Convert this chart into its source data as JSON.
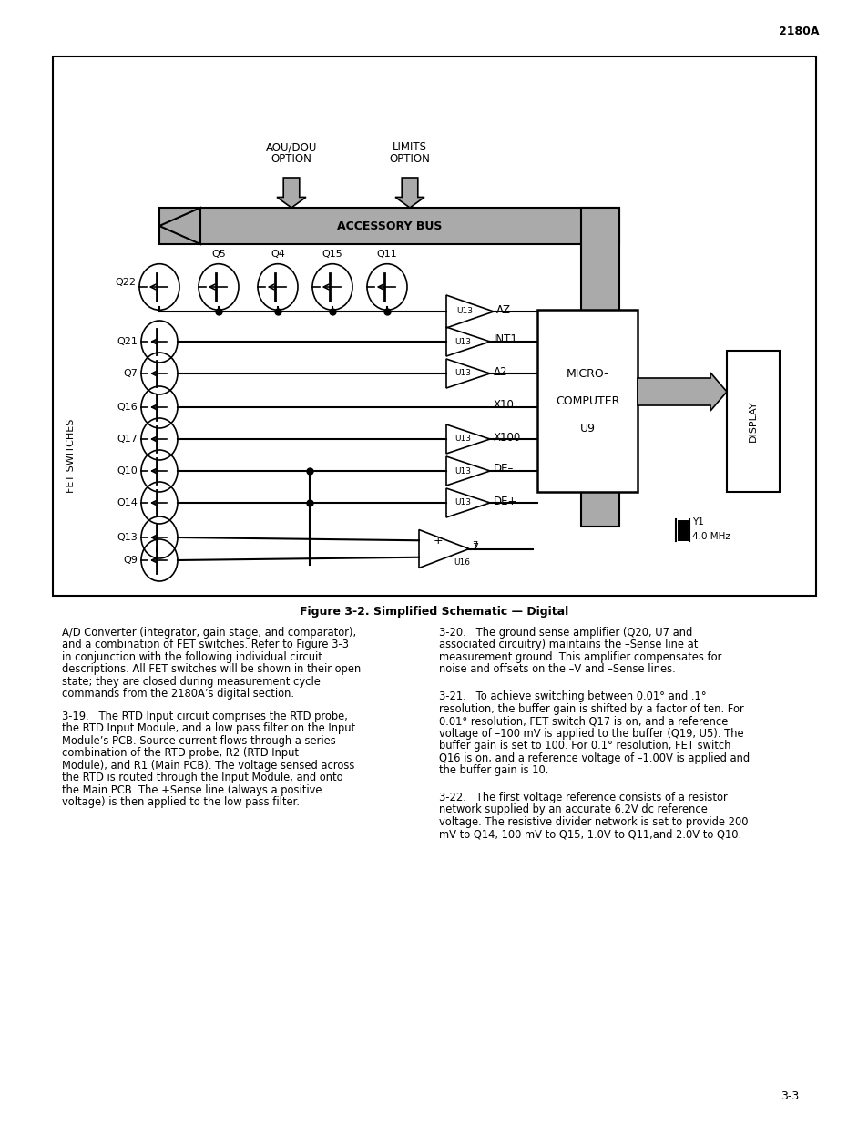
{
  "page_number": "2180A",
  "figure_caption": "Figure 3-2. Simplified Schematic — Digital",
  "page_footer": "3-3",
  "text_col1_para1": "A/D Converter (integrator, gain stage, and comparator),\nand a combination of FET switches. Refer to Figure 3-3\nin conjunction with the following individual circuit\ndescriptions. All FET switches will be shown in their open\nstate; they are closed during measurement cycle\ncommands from the 2180A’s digital section.",
  "text_col1_para2": "3-19.   The RTD Input circuit comprises the RTD probe,\nthe RTD Input Module, and a low pass filter on the Input\nModule’s PCB. Source current flows through a series\ncombination of the RTD probe, R2 (RTD Input\nModule), and R1 (Main PCB). The voltage sensed across\nthe RTD is routed through the Input Module, and onto\nthe Main PCB. The +Sense line (always a positive\nvoltage) is then applied to the low pass filter.",
  "text_col2_para1": "3-20.   The ground sense amplifier (Q20, U7 and\nassociated circuitry) maintains the –Sense line at\nmeasurement ground. This amplifier compensates for\nnoise and offsets on the –V and –Sense lines.",
  "text_col2_para2": "3-21.   To achieve switching between 0.01° and .1°\nresolution, the buffer gain is shifted by a factor of ten. For\n0.01° resolution, FET switch Q17 is on, and a reference\nvoltage of –100 mV is applied to the buffer (Q19, U5). The\nbuffer gain is set to 100. For 0.1° resolution, FET switch\nQ16 is on, and a reference voltage of –1.00V is applied and\nthe buffer gain is 10.",
  "text_col2_para3": "3-22.   The first voltage reference consists of a resistor\nnetwork supplied by an accurate 6.2V dc reference\nvoltage. The resistive divider network is set to provide 200\nmV to Q14, 100 mV to Q15, 1.0V to Q11,and 2.0V to Q10.",
  "bg_color": "#ffffff"
}
